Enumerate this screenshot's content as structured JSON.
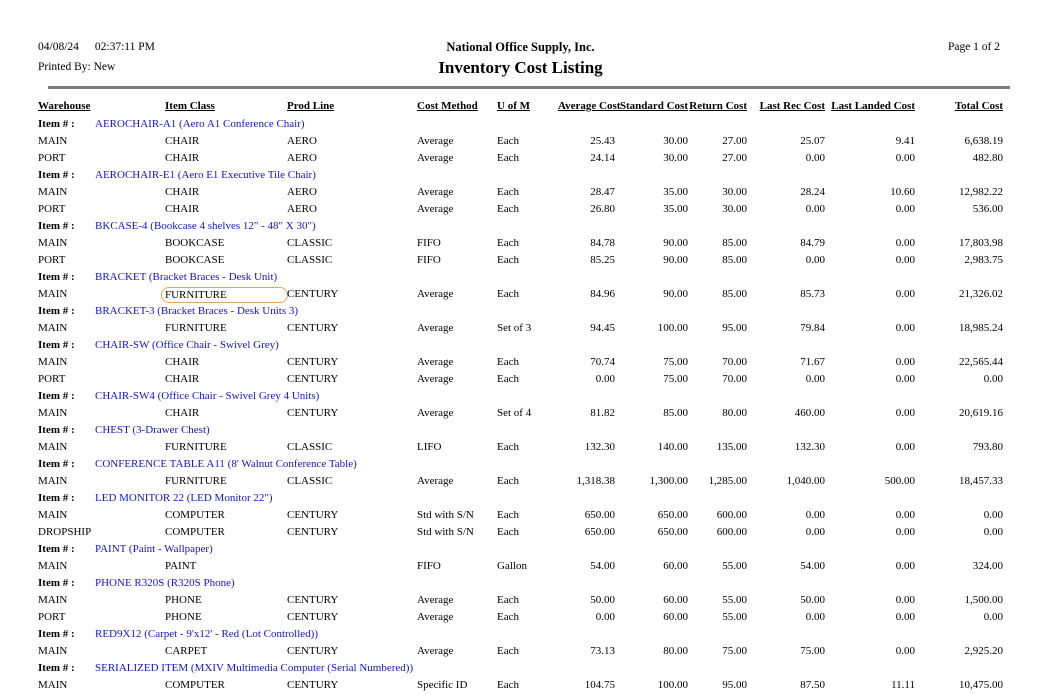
{
  "header": {
    "date": "04/08/24",
    "time": "02:37:11 PM",
    "printed_by": "Printed By: New",
    "company": "National Office Supply, Inc.",
    "title": "Inventory Cost Listing",
    "page": "Page 1 of 2"
  },
  "table": {
    "columns": [
      "Warehouse",
      "Item Class",
      "Prod Line",
      "Cost Method",
      "U of M",
      "Average Cost",
      "Standard Cost",
      "Return Cost",
      "Last Rec Cost",
      "Last Landed Cost",
      "Total Cost"
    ],
    "item_label": "Item # :",
    "sections": [
      {
        "item": "AEROCHAIR-A1 (Aero A1 Conference Chair)",
        "rows": [
          {
            "warehouse": "MAIN",
            "item_class": "CHAIR",
            "prod_line": "AERO",
            "cost_method": "Average",
            "uom": "Each",
            "average_cost": "25.43",
            "standard_cost": "30.00",
            "return_cost": "27.00",
            "last_rec_cost": "25.07",
            "last_landed_cost": "9.41",
            "total_cost": "6,638.19"
          },
          {
            "warehouse": "PORT",
            "item_class": "CHAIR",
            "prod_line": "AERO",
            "cost_method": "Average",
            "uom": "Each",
            "average_cost": "24.14",
            "standard_cost": "30.00",
            "return_cost": "27.00",
            "last_rec_cost": "0.00",
            "last_landed_cost": "0.00",
            "total_cost": "482.80"
          }
        ]
      },
      {
        "item": "AEROCHAIR-E1 (Aero E1 Executive Tile Chair)",
        "rows": [
          {
            "warehouse": "MAIN",
            "item_class": "CHAIR",
            "prod_line": "AERO",
            "cost_method": "Average",
            "uom": "Each",
            "average_cost": "28.47",
            "standard_cost": "35.00",
            "return_cost": "30.00",
            "last_rec_cost": "28.24",
            "last_landed_cost": "10.60",
            "total_cost": "12,982.22"
          },
          {
            "warehouse": "PORT",
            "item_class": "CHAIR",
            "prod_line": "AERO",
            "cost_method": "Average",
            "uom": "Each",
            "average_cost": "26.80",
            "standard_cost": "35.00",
            "return_cost": "30.00",
            "last_rec_cost": "0.00",
            "last_landed_cost": "0.00",
            "total_cost": "536.00"
          }
        ]
      },
      {
        "item": "BKCASE-4 (Bookcase 4 shelves 12\" - 48\" X 30\")",
        "rows": [
          {
            "warehouse": "MAIN",
            "item_class": "BOOKCASE",
            "prod_line": "CLASSIC",
            "cost_method": "FIFO",
            "uom": "Each",
            "average_cost": "84.78",
            "standard_cost": "90.00",
            "return_cost": "85.00",
            "last_rec_cost": "84.79",
            "last_landed_cost": "0.00",
            "total_cost": "17,803.98"
          },
          {
            "warehouse": "PORT",
            "item_class": "BOOKCASE",
            "prod_line": "CLASSIC",
            "cost_method": "FIFO",
            "uom": "Each",
            "average_cost": "85.25",
            "standard_cost": "90.00",
            "return_cost": "85.00",
            "last_rec_cost": "0.00",
            "last_landed_cost": "0.00",
            "total_cost": "2,983.75"
          }
        ]
      },
      {
        "item": "BRACKET (Bracket Braces - Desk Unit)",
        "rows": [
          {
            "warehouse": "MAIN",
            "item_class": "FURNITURE",
            "prod_line": "CENTURY",
            "cost_method": "Average",
            "uom": "Each",
            "average_cost": "84.96",
            "standard_cost": "90.00",
            "return_cost": "85.00",
            "last_rec_cost": "85.73",
            "last_landed_cost": "0.00",
            "total_cost": "21,326.02"
          }
        ]
      },
      {
        "item": "BRACKET-3 (Bracket Braces - Desk Units 3)",
        "rows": [
          {
            "warehouse": "MAIN",
            "item_class": "FURNITURE",
            "prod_line": "CENTURY",
            "cost_method": "Average",
            "uom": "Set of 3",
            "average_cost": "94.45",
            "standard_cost": "100.00",
            "return_cost": "95.00",
            "last_rec_cost": "79.84",
            "last_landed_cost": "0.00",
            "total_cost": "18,985.24"
          }
        ]
      },
      {
        "item": "CHAIR-SW (Office Chair - Swivel Grey)",
        "rows": [
          {
            "warehouse": "MAIN",
            "item_class": "CHAIR",
            "prod_line": "CENTURY",
            "cost_method": "Average",
            "uom": "Each",
            "average_cost": "70.74",
            "standard_cost": "75.00",
            "return_cost": "70.00",
            "last_rec_cost": "71.67",
            "last_landed_cost": "0.00",
            "total_cost": "22,565.44"
          },
          {
            "warehouse": "PORT",
            "item_class": "CHAIR",
            "prod_line": "CENTURY",
            "cost_method": "Average",
            "uom": "Each",
            "average_cost": "0.00",
            "standard_cost": "75.00",
            "return_cost": "70.00",
            "last_rec_cost": "0.00",
            "last_landed_cost": "0.00",
            "total_cost": "0.00"
          }
        ]
      },
      {
        "item": "CHAIR-SW4 (Office Chair - Swivel Grey 4 Units)",
        "rows": [
          {
            "warehouse": "MAIN",
            "item_class": "CHAIR",
            "prod_line": "CENTURY",
            "cost_method": "Average",
            "uom": "Set of 4",
            "average_cost": "81.82",
            "standard_cost": "85.00",
            "return_cost": "80.00",
            "last_rec_cost": "460.00",
            "last_landed_cost": "0.00",
            "total_cost": "20,619.16"
          }
        ]
      },
      {
        "item": "CHEST (3-Drawer Chest)",
        "rows": [
          {
            "warehouse": "MAIN",
            "item_class": "FURNITURE",
            "prod_line": "CLASSIC",
            "cost_method": "LIFO",
            "uom": "Each",
            "average_cost": "132.30",
            "standard_cost": "140.00",
            "return_cost": "135.00",
            "last_rec_cost": "132.30",
            "last_landed_cost": "0.00",
            "total_cost": "793.80"
          }
        ]
      },
      {
        "item": "CONFERENCE TABLE A11 (8' Walnut Conference Table)",
        "rows": [
          {
            "warehouse": "MAIN",
            "item_class": "FURNITURE",
            "prod_line": "CLASSIC",
            "cost_method": "Average",
            "uom": "Each",
            "average_cost": "1,318.38",
            "standard_cost": "1,300.00",
            "return_cost": "1,285.00",
            "last_rec_cost": "1,040.00",
            "last_landed_cost": "500.00",
            "total_cost": "18,457.33"
          }
        ]
      },
      {
        "item": "LED MONITOR 22 (LED Monitor 22\")",
        "rows": [
          {
            "warehouse": "MAIN",
            "item_class": "COMPUTER",
            "prod_line": "CENTURY",
            "cost_method": "Std with S/N",
            "uom": "Each",
            "average_cost": "650.00",
            "standard_cost": "650.00",
            "return_cost": "600.00",
            "last_rec_cost": "0.00",
            "last_landed_cost": "0.00",
            "total_cost": "0.00"
          },
          {
            "warehouse": "DROPSHIP",
            "item_class": "COMPUTER",
            "prod_line": "CENTURY",
            "cost_method": "Std with S/N",
            "uom": "Each",
            "average_cost": "650.00",
            "standard_cost": "650.00",
            "return_cost": "600.00",
            "last_rec_cost": "0.00",
            "last_landed_cost": "0.00",
            "total_cost": "0.00"
          }
        ]
      },
      {
        "item": "PAINT (Paint - Wallpaper)",
        "rows": [
          {
            "warehouse": "MAIN",
            "item_class": "PAINT",
            "prod_line": "",
            "cost_method": "FIFO",
            "uom": "Gallon",
            "average_cost": "54.00",
            "standard_cost": "60.00",
            "return_cost": "55.00",
            "last_rec_cost": "54.00",
            "last_landed_cost": "0.00",
            "total_cost": "324.00"
          }
        ]
      },
      {
        "item": "PHONE R320S (R320S Phone)",
        "rows": [
          {
            "warehouse": "MAIN",
            "item_class": "PHONE",
            "prod_line": "CENTURY",
            "cost_method": "Average",
            "uom": "Each",
            "average_cost": "50.00",
            "standard_cost": "60.00",
            "return_cost": "55.00",
            "last_rec_cost": "50.00",
            "last_landed_cost": "0.00",
            "total_cost": "1,500.00"
          },
          {
            "warehouse": "PORT",
            "item_class": "PHONE",
            "prod_line": "CENTURY",
            "cost_method": "Average",
            "uom": "Each",
            "average_cost": "0.00",
            "standard_cost": "60.00",
            "return_cost": "55.00",
            "last_rec_cost": "0.00",
            "last_landed_cost": "0.00",
            "total_cost": "0.00"
          }
        ]
      },
      {
        "item": "RED9X12 (Carpet - 9'x12' - Red (Lot Controlled))",
        "rows": [
          {
            "warehouse": "MAIN",
            "item_class": "CARPET",
            "prod_line": "CENTURY",
            "cost_method": "Average",
            "uom": "Each",
            "average_cost": "73.13",
            "standard_cost": "80.00",
            "return_cost": "75.00",
            "last_rec_cost": "75.00",
            "last_landed_cost": "0.00",
            "total_cost": "2,925.20"
          }
        ]
      },
      {
        "item": "SERIALIZED ITEM (MXIV Multimedia Computer (Serial Numbered))",
        "rows": [
          {
            "warehouse": "MAIN",
            "item_class": "COMPUTER",
            "prod_line": "CENTURY",
            "cost_method": "Specific ID",
            "uom": "Each",
            "average_cost": "104.75",
            "standard_cost": "100.00",
            "return_cost": "95.00",
            "last_rec_cost": "87.50",
            "last_landed_cost": "11.11",
            "total_cost": "10,475.00"
          }
        ]
      }
    ]
  },
  "annotations": {
    "highlight_box": {
      "section_index": 3,
      "row_index": 0,
      "column": "item_class",
      "border_color": "#e8a35b"
    }
  },
  "colors": {
    "link_blue": "#1414c8",
    "rule_gray": "#7d7d7d"
  }
}
